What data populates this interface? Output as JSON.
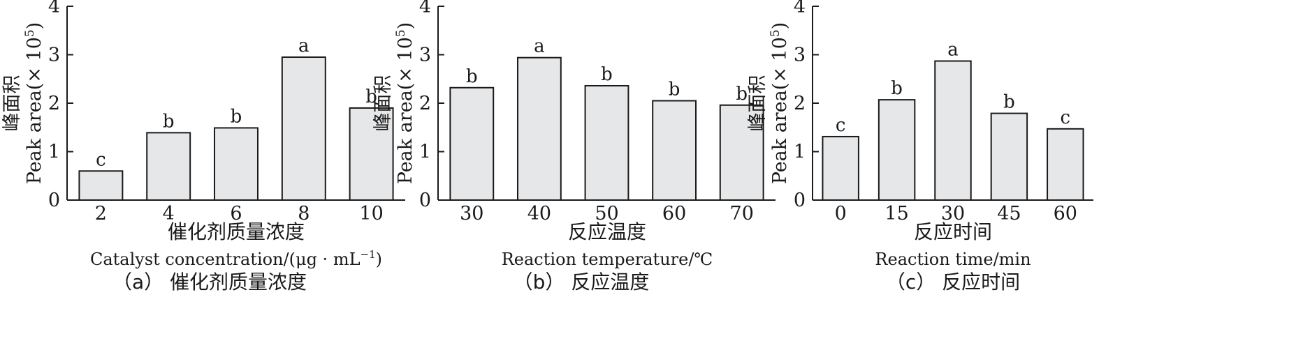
{
  "chart_data": [
    {
      "type": "bar",
      "panel": "(a)",
      "categories": [
        "2",
        "4",
        "6",
        "8",
        "10"
      ],
      "values": [
        0.6,
        1.39,
        1.49,
        2.95,
        1.9
      ],
      "bar_labels": [
        "c",
        "b",
        "b",
        "a",
        "b"
      ],
      "ylabel_cn": "峰面积",
      "ylabel_en": "Peak area(× 10",
      "ylabel_exp": "5",
      "ylabel_close": ")",
      "xlabel_cn": "催化剂质量浓度",
      "xlabel_en": "Catalyst concentration/(μg · mL",
      "xlabel_en_exp": "−1",
      "xlabel_en_close": ")",
      "caption": "（a） 催化剂质量浓度",
      "ylim": [
        0,
        4
      ],
      "yticks": [
        0,
        1,
        2,
        3,
        4
      ],
      "bar_color": "#e6e7e8"
    },
    {
      "type": "bar",
      "panel": "(b)",
      "categories": [
        "30",
        "40",
        "50",
        "60",
        "70"
      ],
      "values": [
        2.32,
        2.94,
        2.36,
        2.05,
        1.96
      ],
      "bar_labels": [
        "b",
        "a",
        "b",
        "b",
        "b"
      ],
      "ylabel_cn": "峰面积",
      "ylabel_en": "Peak area(× 10",
      "ylabel_exp": "5",
      "ylabel_close": ")",
      "xlabel_cn": "反应温度",
      "xlabel_en": "Reaction temperature/℃",
      "xlabel_en_exp": "",
      "xlabel_en_close": "",
      "caption": "（b） 反应温度",
      "ylim": [
        0,
        4
      ],
      "yticks": [
        0,
        1,
        2,
        3,
        4
      ],
      "bar_color": "#e6e7e8"
    },
    {
      "type": "bar",
      "panel": "(c)",
      "categories": [
        "0",
        "15",
        "30",
        "45",
        "60"
      ],
      "values": [
        1.31,
        2.07,
        2.87,
        1.79,
        1.47
      ],
      "bar_labels": [
        "c",
        "b",
        "a",
        "b",
        "c"
      ],
      "ylabel_cn": "峰面积",
      "ylabel_en": "Peak area(× 10",
      "ylabel_exp": "5",
      "ylabel_close": ")",
      "xlabel_cn": "反应时间",
      "xlabel_en": "Reaction time/min",
      "xlabel_en_exp": "",
      "xlabel_en_close": "",
      "caption": "（c） 反应时间",
      "ylim": [
        0,
        4
      ],
      "yticks": [
        0,
        1,
        2,
        3,
        4
      ],
      "bar_color": "#e6e7e8"
    }
  ]
}
